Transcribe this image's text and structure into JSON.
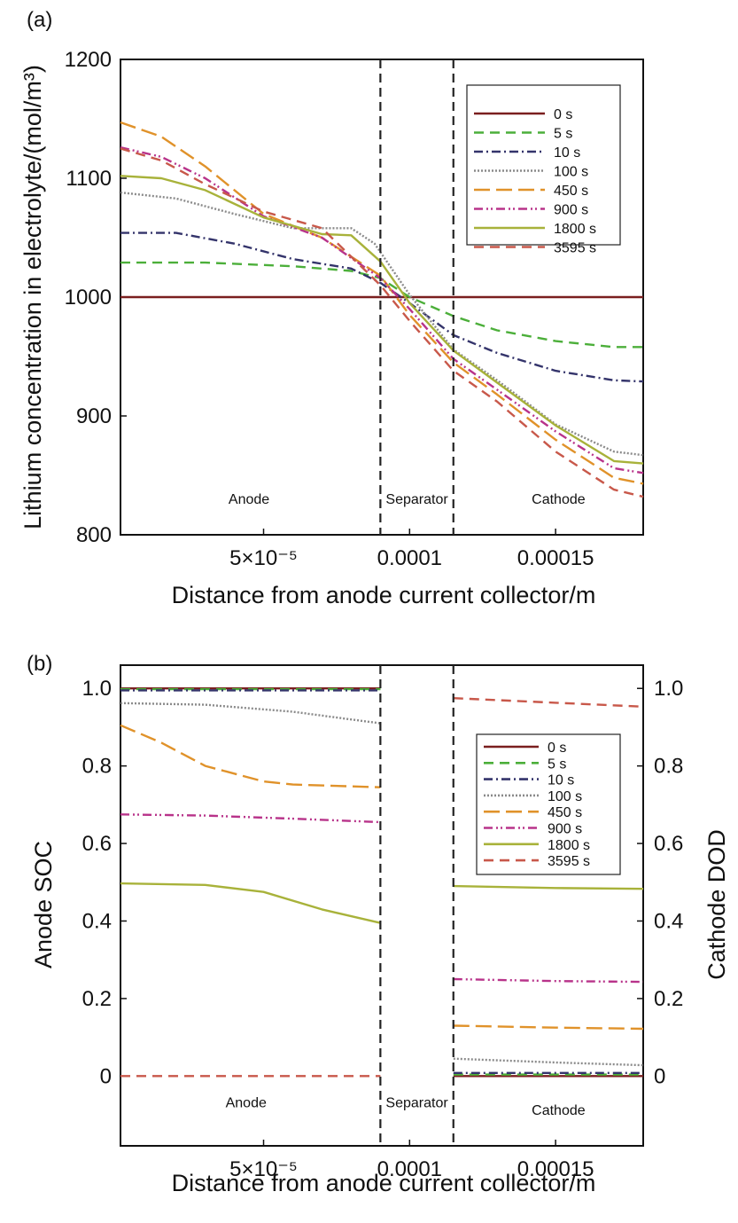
{
  "figure": {
    "panel_a_label": "(a)",
    "panel_b_label": "(b)"
  },
  "colors": {
    "0 s": "#7a1f1f",
    "5 s": "#4caf3a",
    "10 s": "#34346b",
    "100 s": "#8a8a8a",
    "450 s": "#e0922a",
    "900 s": "#b8338a",
    "1800 s": "#a8b23a",
    "3595 s": "#c8584a"
  },
  "chart_data": [
    {
      "type": "line",
      "title": "",
      "xlabel": "Distance from anode current collector/m",
      "ylabel": "Lithium concentration in electrolyte/(mol/m³)",
      "xlim": [
        1e-06,
        0.00018
      ],
      "ylim": [
        800,
        1200
      ],
      "xticks": [
        5e-05,
        0.0001,
        0.00015
      ],
      "xtick_labels": [
        "5×10⁻⁵",
        "0.0001",
        "0.00015"
      ],
      "yticks": [
        800,
        900,
        1000,
        1100,
        1200
      ],
      "ytick_labels": [
        "800",
        "900",
        "1000",
        "1100",
        "1200"
      ],
      "separator_boundaries": [
        9e-05,
        0.000115
      ],
      "region_labels": [
        {
          "text": "Anode",
          "x": 4.5e-05,
          "y": 826
        },
        {
          "text": "Separator",
          "x": 0.0001025,
          "y": 826
        },
        {
          "text": "Cathode",
          "x": 0.000151,
          "y": 826
        }
      ],
      "legend_position": "top-right",
      "series": [
        {
          "name": "0 s",
          "style": "solid",
          "x": [
            1e-06,
            0.00018
          ],
          "y": [
            1000,
            1000
          ]
        },
        {
          "name": "5 s",
          "style": "dash",
          "x": [
            1e-06,
            3e-05,
            6e-05,
            8e-05,
            9e-05,
            0.0001,
            0.000115,
            0.00013,
            0.00015,
            0.00017,
            0.00018
          ],
          "y": [
            1029,
            1029,
            1026,
            1022,
            1016,
            1000,
            984,
            972,
            963,
            958,
            958
          ]
        },
        {
          "name": "10 s",
          "style": "dashdot",
          "x": [
            1e-06,
            2e-05,
            4e-05,
            6e-05,
            8e-05,
            9e-05,
            0.0001,
            0.000115,
            0.00013,
            0.00015,
            0.00017,
            0.00018
          ],
          "y": [
            1054,
            1054,
            1045,
            1032,
            1024,
            1012,
            995,
            968,
            953,
            938,
            930,
            929
          ]
        },
        {
          "name": "100 s",
          "style": "dot",
          "x": [
            1e-06,
            2e-05,
            4e-05,
            6e-05,
            8e-05,
            8.8e-05,
            0.0001,
            0.000115,
            0.00013,
            0.00015,
            0.00017,
            0.00018
          ],
          "y": [
            1088,
            1083,
            1070,
            1058,
            1058,
            1045,
            1002,
            956,
            930,
            893,
            870,
            867
          ]
        },
        {
          "name": "450 s",
          "style": "longdash",
          "x": [
            1e-06,
            1.5e-05,
            3e-05,
            5e-05,
            7e-05,
            9e-05,
            0.0001,
            0.000115,
            0.00013,
            0.00015,
            0.00017,
            0.00018
          ],
          "y": [
            1147,
            1135,
            1110,
            1070,
            1050,
            1018,
            985,
            945,
            918,
            880,
            848,
            843
          ]
        },
        {
          "name": "900 s",
          "style": "dashdotdot",
          "x": [
            1e-06,
            1.5e-05,
            3e-05,
            5e-05,
            7e-05,
            9e-05,
            0.0001,
            0.000115,
            0.00013,
            0.00015,
            0.00017,
            0.00018
          ],
          "y": [
            1126,
            1118,
            1100,
            1068,
            1050,
            1016,
            990,
            948,
            922,
            887,
            856,
            852
          ]
        },
        {
          "name": "1800 s",
          "style": "solid",
          "x": [
            1e-06,
            1.5e-05,
            3e-05,
            5e-05,
            7e-05,
            8e-05,
            9e-05,
            0.0001,
            0.000115,
            0.00013,
            0.00015,
            0.00017,
            0.00018
          ],
          "y": [
            1102,
            1100,
            1090,
            1067,
            1053,
            1052,
            1030,
            995,
            955,
            928,
            892,
            862,
            860
          ]
        },
        {
          "name": "3595 s",
          "style": "dash",
          "x": [
            1e-06,
            1.5e-05,
            3e-05,
            5e-05,
            7e-05,
            9e-05,
            0.0001,
            0.000115,
            0.00013,
            0.00015,
            0.00017,
            0.00018
          ],
          "y": [
            1125,
            1115,
            1095,
            1072,
            1058,
            1010,
            980,
            938,
            912,
            870,
            838,
            832
          ]
        }
      ]
    },
    {
      "type": "line",
      "title": "",
      "xlabel": "Distance from anode current collector/m",
      "ylabel": "Anode SOC",
      "y2label": "Cathode DOD",
      "xlim": [
        1e-06,
        0.00018
      ],
      "ylim": [
        -0.18,
        1.06
      ],
      "xticks": [
        5e-05,
        0.0001,
        0.00015
      ],
      "xtick_labels": [
        "5×10⁻⁵",
        "0.0001",
        "0.00015"
      ],
      "yticks": [
        0,
        0.2,
        0.4,
        0.6,
        0.8,
        1.0
      ],
      "ytick_labels": [
        "0",
        "0.2",
        "0.4",
        "0.6",
        "0.8",
        "1.0"
      ],
      "y2ticks": [
        0,
        0.2,
        0.4,
        0.6,
        0.8,
        1.0
      ],
      "y2tick_labels": [
        "0",
        "0.2",
        "0.4",
        "0.6",
        "0.8",
        "1.0"
      ],
      "separator_boundaries": [
        9e-05,
        0.000115
      ],
      "region_labels": [
        {
          "text": "Anode",
          "x": 4.4e-05,
          "y": -0.08
        },
        {
          "text": "Separator",
          "x": 0.0001025,
          "y": -0.08
        },
        {
          "text": "Cathode",
          "x": 0.000151,
          "y": -0.1
        }
      ],
      "legend_position": "right",
      "series": [
        {
          "name": "0 s",
          "style": "solid",
          "anode": {
            "x": [
              1e-06,
              9e-05
            ],
            "y": [
              1.0,
              1.0
            ]
          },
          "cathode": {
            "x": [
              0.000115,
              0.00018
            ],
            "y": [
              0.0,
              0.0
            ]
          }
        },
        {
          "name": "5 s",
          "style": "dash",
          "anode": {
            "x": [
              1e-06,
              9e-05
            ],
            "y": [
              0.998,
              0.998
            ]
          },
          "cathode": {
            "x": [
              0.000115,
              0.00018
            ],
            "y": [
              0.004,
              0.004
            ]
          }
        },
        {
          "name": "10 s",
          "style": "dashdot",
          "anode": {
            "x": [
              1e-06,
              9e-05
            ],
            "y": [
              0.995,
              0.995
            ]
          },
          "cathode": {
            "x": [
              0.000115,
              0.00018
            ],
            "y": [
              0.008,
              0.008
            ]
          }
        },
        {
          "name": "100 s",
          "style": "dot",
          "anode": {
            "x": [
              1e-06,
              3e-05,
              6e-05,
              9e-05
            ],
            "y": [
              0.962,
              0.958,
              0.94,
              0.91
            ]
          },
          "cathode": {
            "x": [
              0.000115,
              0.00015,
              0.00018
            ],
            "y": [
              0.045,
              0.035,
              0.028
            ]
          }
        },
        {
          "name": "450 s",
          "style": "longdash",
          "anode": {
            "x": [
              1e-06,
              1.5e-05,
              3e-05,
              5e-05,
              6e-05,
              9e-05
            ],
            "y": [
              0.905,
              0.86,
              0.8,
              0.76,
              0.752,
              0.745
            ]
          },
          "cathode": {
            "x": [
              0.000115,
              0.00015,
              0.00018
            ],
            "y": [
              0.13,
              0.125,
              0.122
            ]
          }
        },
        {
          "name": "900 s",
          "style": "dashdotdot",
          "anode": {
            "x": [
              1e-06,
              3e-05,
              6e-05,
              9e-05
            ],
            "y": [
              0.675,
              0.672,
              0.664,
              0.655
            ]
          },
          "cathode": {
            "x": [
              0.000115,
              0.00015,
              0.00018
            ],
            "y": [
              0.25,
              0.245,
              0.243
            ]
          }
        },
        {
          "name": "1800 s",
          "style": "solid",
          "anode": {
            "x": [
              1e-06,
              3e-05,
              5e-05,
              7e-05,
              9e-05
            ],
            "y": [
              0.497,
              0.493,
              0.475,
              0.43,
              0.395
            ]
          },
          "cathode": {
            "x": [
              0.000115,
              0.00015,
              0.00018
            ],
            "y": [
              0.49,
              0.485,
              0.483
            ]
          }
        },
        {
          "name": "3595 s",
          "style": "dash",
          "anode": {
            "x": [
              1e-06,
              9e-05
            ],
            "y": [
              0.0,
              0.0
            ]
          },
          "cathode": {
            "x": [
              0.000115,
              0.00015,
              0.00018
            ],
            "y": [
              0.975,
              0.963,
              0.953
            ]
          }
        }
      ]
    }
  ]
}
